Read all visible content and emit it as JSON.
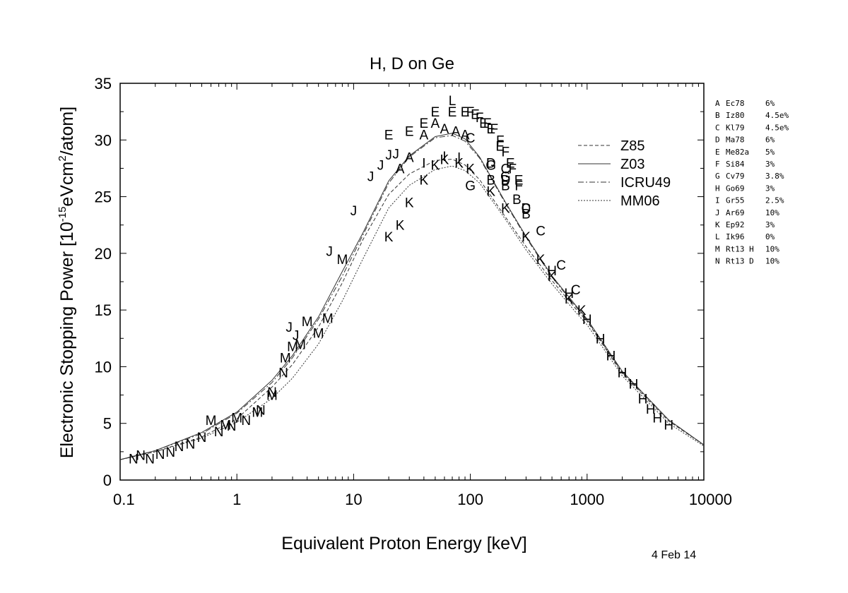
{
  "date_stamp": "4 Feb 14",
  "chart_data": {
    "type": "line",
    "title": "H, D on Ge",
    "xlabel": "Equivalent Proton Energy [keV]",
    "ylabel": "Electronic Stopping Power [10",
    "ylabel_exp1": "-15",
    "ylabel_mid": "eVcm",
    "ylabel_exp2": "2",
    "ylabel_end": "/atom]",
    "x_scale": "log",
    "xlim": [
      0.1,
      10000
    ],
    "ylim": [
      0,
      35
    ],
    "x_ticks": [
      0.1,
      1,
      10,
      100,
      1000,
      10000
    ],
    "x_tick_labels": [
      "0.1",
      "1",
      "10",
      "100",
      "1000",
      "10000"
    ],
    "y_ticks": [
      0,
      5,
      10,
      15,
      20,
      25,
      30,
      35
    ],
    "y_tick_labels": [
      "0",
      "5",
      "10",
      "15",
      "20",
      "25",
      "30",
      "35"
    ],
    "grid": false,
    "legend_position": "top-right",
    "series": [
      {
        "name": "Z85",
        "dash": "5,3",
        "x": [
          0.1,
          0.2,
          0.5,
          1,
          2,
          3,
          5,
          8,
          12,
          20,
          30,
          50,
          70,
          90,
          120,
          200,
          300,
          500,
          800,
          1000,
          2000,
          5000,
          10000
        ],
        "y": [
          1.8,
          2.5,
          3.8,
          5.4,
          8.2,
          10.2,
          13.5,
          17.4,
          21.2,
          25.2,
          27.0,
          28.2,
          28.3,
          27.8,
          26.5,
          23.2,
          20.6,
          17.6,
          15.1,
          14.0,
          9.4,
          5.2,
          3.1
        ]
      },
      {
        "name": "Z03",
        "dash": "",
        "x": [
          0.1,
          0.2,
          0.5,
          1,
          2,
          3,
          5,
          8,
          12,
          20,
          30,
          50,
          70,
          90,
          120,
          200,
          300,
          500,
          800,
          1000,
          2000,
          5000,
          10000
        ],
        "y": [
          1.8,
          2.6,
          4.2,
          6.0,
          8.8,
          11.0,
          14.4,
          18.4,
          21.8,
          26.4,
          28.6,
          30.3,
          30.6,
          30.1,
          28.5,
          24.5,
          21.5,
          18.0,
          15.4,
          14.2,
          9.6,
          5.3,
          3.1
        ]
      },
      {
        "name": "ICRU49",
        "dash": "8,3,2,3",
        "x": [
          0.1,
          0.2,
          0.5,
          1,
          2,
          3,
          5,
          8,
          12,
          20,
          30,
          50,
          70,
          90,
          120,
          200,
          300,
          500,
          800,
          1000,
          2000,
          5000,
          10000
        ],
        "y": [
          1.8,
          2.6,
          4.1,
          5.9,
          8.6,
          10.8,
          14.2,
          18.0,
          21.6,
          26.2,
          28.5,
          30.2,
          30.4,
          29.9,
          28.4,
          24.4,
          21.4,
          17.9,
          15.3,
          14.1,
          9.5,
          5.3,
          3.1
        ]
      },
      {
        "name": "MM06",
        "dash": "2,2",
        "x": [
          0.1,
          0.2,
          0.5,
          1,
          2,
          3,
          5,
          8,
          12,
          20,
          30,
          50,
          70,
          90,
          120,
          200,
          300,
          500,
          800,
          1000,
          2000,
          5000,
          10000
        ],
        "y": [
          1.8,
          2.5,
          3.7,
          5.1,
          7.2,
          9.0,
          12.0,
          15.8,
          19.5,
          24.0,
          26.0,
          27.4,
          27.7,
          27.3,
          26.2,
          23.0,
          20.3,
          17.3,
          14.8,
          13.7,
          9.2,
          5.0,
          3.0
        ]
      }
    ],
    "datasets": [
      {
        "label": "A",
        "source": "Ec78",
        "error": "6%",
        "points": [
          [
            25,
            27.5
          ],
          [
            30,
            28.5
          ],
          [
            40,
            30.5
          ],
          [
            50,
            31.5
          ],
          [
            60,
            31.0
          ],
          [
            75,
            30.8
          ],
          [
            90,
            30.5
          ]
        ]
      },
      {
        "label": "B",
        "source": "Iz80",
        "error": "4.5e%",
        "points": [
          [
            150,
            26.5
          ],
          [
            200,
            26.0
          ],
          [
            250,
            24.8
          ],
          [
            300,
            23.5
          ]
        ]
      },
      {
        "label": "C",
        "source": "Kl79",
        "error": "4.5e%",
        "points": [
          [
            100,
            30.2
          ],
          [
            200,
            27.5
          ],
          [
            300,
            24.0
          ],
          [
            400,
            22.0
          ],
          [
            600,
            19.0
          ],
          [
            800,
            16.8
          ]
        ]
      },
      {
        "label": "D",
        "source": "Ma78",
        "error": "6%",
        "points": [
          [
            150,
            28.0
          ],
          [
            200,
            26.5
          ],
          [
            300,
            24.0
          ]
        ]
      },
      {
        "label": "E",
        "source": "Me82a",
        "error": "5%",
        "points": [
          [
            20,
            30.5
          ],
          [
            30,
            30.8
          ],
          [
            40,
            31.5
          ],
          [
            50,
            32.5
          ],
          [
            70,
            32.5
          ],
          [
            90,
            32.5
          ],
          [
            110,
            32.3
          ],
          [
            130,
            31.5
          ],
          [
            150,
            31.0
          ],
          [
            180,
            29.5
          ],
          [
            220,
            28.0
          ],
          [
            260,
            26.5
          ]
        ]
      },
      {
        "label": "F",
        "source": "Si84",
        "error": "3%",
        "points": [
          [
            100,
            32.5
          ],
          [
            120,
            32.0
          ],
          [
            140,
            31.5
          ],
          [
            160,
            31.0
          ],
          [
            180,
            30.0
          ],
          [
            200,
            29.0
          ],
          [
            230,
            27.5
          ],
          [
            260,
            26.0
          ]
        ]
      },
      {
        "label": "G",
        "source": "Cv79",
        "error": "3.8%",
        "points": [
          [
            100,
            26.0
          ],
          [
            150,
            27.8
          ],
          [
            200,
            26.8
          ]
        ]
      },
      {
        "label": "H",
        "source": "Go69",
        "error": "3%",
        "points": [
          [
            500,
            18.5
          ],
          [
            700,
            16.5
          ],
          [
            1000,
            14.2
          ],
          [
            1300,
            12.5
          ],
          [
            1600,
            11.0
          ],
          [
            2000,
            9.5
          ],
          [
            2500,
            8.5
          ],
          [
            3000,
            7.2
          ],
          [
            3500,
            6.3
          ],
          [
            4000,
            5.5
          ],
          [
            5000,
            4.9
          ]
        ]
      },
      {
        "label": "I",
        "source": "Gr55",
        "error": "2.5%",
        "points": [
          [
            40,
            28.0
          ],
          [
            60,
            28.6
          ],
          [
            80,
            28.5
          ]
        ]
      },
      {
        "label": "J",
        "source": "Ar69",
        "error": "10%",
        "points": [
          [
            2.8,
            13.5
          ],
          [
            3.2,
            12.8
          ],
          [
            6.2,
            20.2
          ],
          [
            10,
            23.8
          ],
          [
            14,
            26.8
          ],
          [
            17,
            27.8
          ],
          [
            20,
            28.7
          ],
          [
            23,
            28.8
          ]
        ]
      },
      {
        "label": "K",
        "source": "Ep92",
        "error": "3%",
        "points": [
          [
            20,
            21.5
          ],
          [
            25,
            22.5
          ],
          [
            30,
            24.5
          ],
          [
            40,
            26.5
          ],
          [
            50,
            27.8
          ],
          [
            60,
            28.3
          ],
          [
            80,
            28.0
          ],
          [
            100,
            27.5
          ],
          [
            150,
            25.5
          ],
          [
            200,
            24.0
          ],
          [
            300,
            21.5
          ],
          [
            400,
            19.5
          ],
          [
            500,
            18.0
          ],
          [
            700,
            16.0
          ],
          [
            900,
            15.0
          ]
        ]
      },
      {
        "label": "L",
        "source": "Ik96",
        "error": "0%",
        "points": [
          [
            70,
            33.5
          ]
        ]
      },
      {
        "label": "M",
        "source": "Rt13 H",
        "error": "10%",
        "points": [
          [
            0.6,
            5.3
          ],
          [
            0.8,
            4.9
          ],
          [
            1.0,
            5.5
          ],
          [
            1.5,
            6.0
          ],
          [
            2.0,
            7.5
          ],
          [
            2.6,
            10.8
          ],
          [
            3.0,
            11.8
          ],
          [
            3.5,
            12.0
          ],
          [
            4.0,
            14.0
          ],
          [
            5.0,
            13.0
          ],
          [
            6.0,
            14.3
          ],
          [
            8.0,
            19.5
          ]
        ]
      },
      {
        "label": "N",
        "source": "Rt13 D",
        "error": "10%",
        "points": [
          [
            0.13,
            1.9
          ],
          [
            0.15,
            2.2
          ],
          [
            0.18,
            1.9
          ],
          [
            0.22,
            2.3
          ],
          [
            0.27,
            2.5
          ],
          [
            0.32,
            3.0
          ],
          [
            0.4,
            3.2
          ],
          [
            0.5,
            3.8
          ],
          [
            0.7,
            4.3
          ],
          [
            0.9,
            4.8
          ],
          [
            1.2,
            5.3
          ],
          [
            1.6,
            6.2
          ],
          [
            2.0,
            7.8
          ],
          [
            2.5,
            9.5
          ]
        ]
      }
    ]
  }
}
